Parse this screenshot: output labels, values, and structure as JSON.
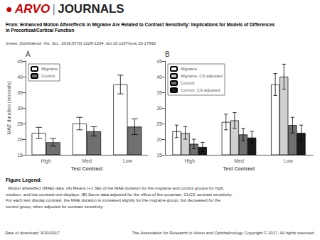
{
  "chart_data": [
    {
      "type": "bar",
      "title": "A",
      "categories": [
        "High",
        "Med",
        "Low"
      ],
      "xlabel": "Test Contrast",
      "ylabel": "MAE duration (seconds)",
      "ylim": [
        15,
        45
      ],
      "yticks": [
        15,
        20,
        25,
        30,
        35,
        40,
        45
      ],
      "grid": false,
      "legend": "upper left",
      "series": [
        {
          "name": "Migraine",
          "color": "#ffffff",
          "values": [
            22.0,
            25.0,
            37.5
          ],
          "errors": [
            1.8,
            2.0,
            3.0
          ]
        },
        {
          "name": "Control",
          "color": "#707070",
          "values": [
            19.0,
            22.5,
            24.0
          ],
          "errors": [
            1.2,
            1.5,
            2.5
          ]
        }
      ]
    },
    {
      "type": "bar",
      "title": "B",
      "categories": [
        "High",
        "Med",
        "Low"
      ],
      "xlabel": "Test Contrast",
      "ylim": [
        15,
        45
      ],
      "yticks": [
        15,
        20,
        25,
        30,
        35,
        40,
        45
      ],
      "grid": false,
      "legend": "upper left",
      "series": [
        {
          "name": "Migraine",
          "color": "#ffffff",
          "values": [
            22.5,
            25.5,
            37.5
          ],
          "errors": [
            2.0,
            2.5,
            3.5
          ]
        },
        {
          "name": "Migraine, CS adjusted",
          "color": "#d0d0d0",
          "values": [
            22.0,
            26.0,
            40.0
          ],
          "errors": [
            2.0,
            2.5,
            4.0
          ]
        },
        {
          "name": "Control",
          "color": "#707070",
          "values": [
            18.5,
            21.5,
            24.5
          ],
          "errors": [
            1.5,
            2.0,
            2.5
          ]
        },
        {
          "name": "Control, CS adjusted",
          "color": "#1a1a1a",
          "values": [
            17.5,
            20.5,
            22.0
          ],
          "errors": [
            1.5,
            2.0,
            2.5
          ]
        }
      ]
    }
  ],
  "annotations": [
    {
      "text": "●",
      "color": "#cc0000"
    },
    {
      "text": "ARVO",
      "color": "#cc0000"
    },
    {
      "text": "|",
      "color": "#888888"
    },
    {
      "text": "JOURNALS",
      "color": "#222222"
    },
    {
      "text": "From: Enhanced Motion Aftereffects in Migraine Are Related to Contrast Sensitivity: Implications for Models of Differences"
    },
    {
      "text": "in Precortical/Cortical Function"
    },
    {
      "text": "Invest. Ophthalmol. Vis. Sci.. 2016;57(3):1228-1234. doi:10.1167/iovs.15-17692"
    },
    {
      "text": "Figure Legend:"
    },
    {
      "text": "  Motion aftereffect (MAE) data. (A) Means (+1 SE) of the MAE duration for the migraine and control groups for high,\nmedium, and low contrast test displays. (B) Same data adjusted for the effect of the covariate, CLCG contrast sensitivity.\nFor each test display contrast, the MAE duration is increased slightly for the migraine group, but decreased for the\ncontrol group, when adjusted for contrast sensitivity."
    },
    {
      "text": "Date of download: 9/30/2017"
    },
    {
      "text": "The Association for Research in Vision and Ophthalmology Copyright © 2017. All rights reserved."
    }
  ]
}
